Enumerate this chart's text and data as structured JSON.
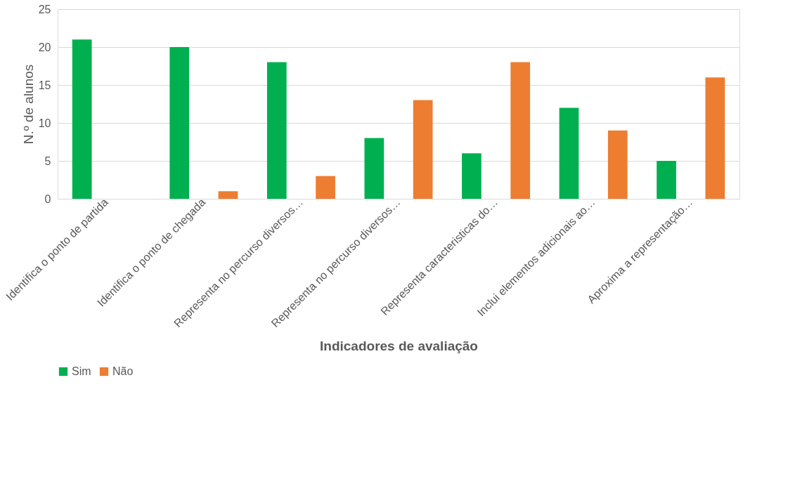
{
  "chart_data": {
    "type": "bar",
    "xlabel": "Indicadores de avaliação",
    "ylabel": "N.º de alunos",
    "categories": [
      "Identifica o ponto de partida",
      "Identifica o ponto de chegada",
      "Representa no percurso diversos…",
      "Representa no percurso diversos…",
      "Representa caracteristicas do…",
      "Inclui elementos adicionais ao…",
      "Aproxima a representação…"
    ],
    "series": [
      {
        "name": "Sim",
        "color": "#00b050",
        "values": [
          21,
          20,
          18,
          8,
          6,
          12,
          5
        ]
      },
      {
        "name": "Não",
        "color": "#ed7d31",
        "values": [
          0,
          1,
          3,
          13,
          18,
          9,
          16
        ]
      }
    ],
    "ylim": [
      0,
      25
    ],
    "yticks": [
      0,
      5,
      10,
      15,
      20,
      25
    ],
    "grid": "y",
    "legend": "bottom"
  }
}
